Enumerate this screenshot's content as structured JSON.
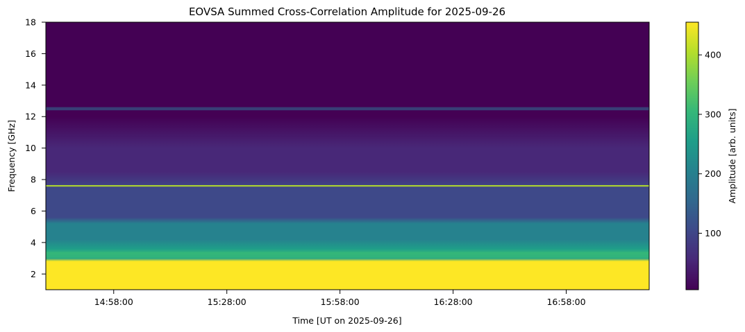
{
  "chart_data": {
    "type": "heatmap",
    "title": "EOVSA Summed Cross-Correlation Amplitude for 2025-09-26",
    "xlabel": "Time [UT on 2025-09-26]",
    "ylabel": "Frequency [GHz]",
    "colorbar_label": "Amplitude [arb. units]",
    "colormap": "viridis",
    "colormap_stops": [
      "#440154",
      "#482878",
      "#3e4989",
      "#31688e",
      "#26828e",
      "#1f9e89",
      "#35b779",
      "#6ece58",
      "#b5de2b",
      "#fde725"
    ],
    "x_range": [
      "14:40:00",
      "17:20:00"
    ],
    "x_ticks": [
      "14:58:00",
      "15:28:00",
      "15:58:00",
      "16:28:00",
      "16:58:00"
    ],
    "y_range": [
      1.0,
      18.0
    ],
    "y_ticks": [
      2,
      4,
      6,
      8,
      10,
      12,
      14,
      16,
      18
    ],
    "color_range": [
      5,
      455
    ],
    "colorbar_ticks": [
      100,
      200,
      300,
      400
    ],
    "features": {
      "saturated_band_ghz": [
        1.2,
        2.8
      ],
      "bright_band_ghz": [
        3.0,
        5.5
      ],
      "interference_line_ghz": 7.6,
      "faint_band_ghz": 12.5
    }
  }
}
